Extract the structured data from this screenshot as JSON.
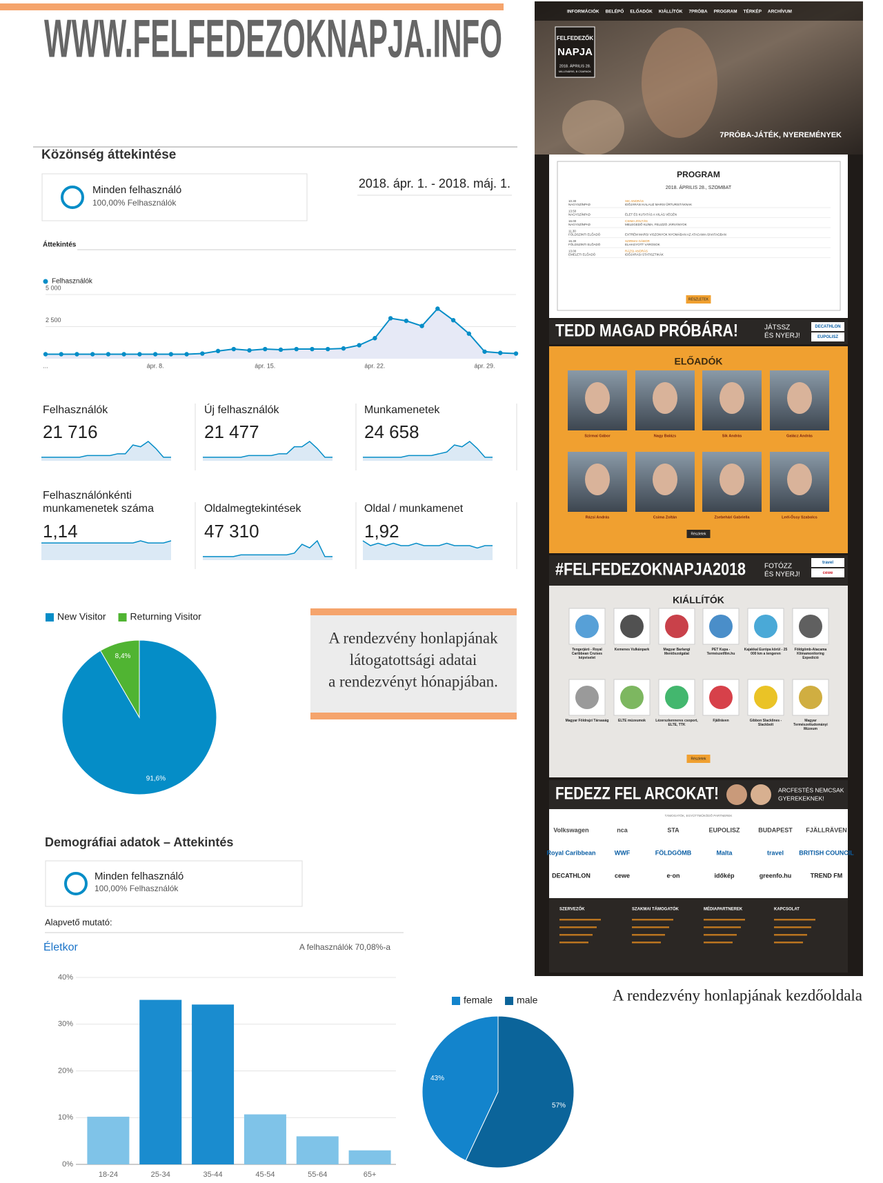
{
  "header": {
    "title": "WWW.FELFEDEZOKNAPJA.INFO"
  },
  "overview": {
    "title": "Közönség áttekintése",
    "segment": "Minden felhasználó",
    "segment_sub": "100,00% Felhasználók",
    "date_range": "2018. ápr. 1. - 2018. máj. 1.",
    "tab": "Áttekintés"
  },
  "metrics": [
    {
      "label": "Felhasználók",
      "value": "21 716",
      "trend": [
        2,
        2,
        2,
        2,
        2,
        2,
        3,
        3,
        3,
        3,
        4,
        4,
        9,
        8,
        11,
        7,
        2,
        2
      ]
    },
    {
      "label": "Új felhasználók",
      "value": "21 477",
      "trend": [
        2,
        2,
        2,
        2,
        2,
        2,
        3,
        3,
        3,
        3,
        4,
        4,
        8,
        8,
        11,
        7,
        2,
        2
      ]
    },
    {
      "label": "Munkamenetek",
      "value": "24 658",
      "trend": [
        2,
        2,
        2,
        2,
        2,
        2,
        3,
        3,
        3,
        3,
        4,
        5,
        9,
        8,
        11,
        7,
        2,
        2
      ]
    },
    {
      "label": "Felhasználónkénti munkamenetek száma",
      "value": "1,14",
      "trend": [
        8,
        8,
        8,
        8,
        8,
        8,
        8,
        8,
        8,
        8,
        8,
        8,
        8,
        9,
        8,
        8,
        8,
        9
      ]
    },
    {
      "label": "Oldalmegtekintések",
      "value": "47 310",
      "trend": [
        2,
        2,
        2,
        2,
        2,
        3,
        3,
        3,
        3,
        3,
        3,
        3,
        4,
        9,
        7,
        11,
        2,
        2
      ]
    },
    {
      "label": "Oldal / munkamenet",
      "value": "1,92",
      "trend": [
        8,
        6,
        7,
        6,
        7,
        6,
        6,
        7,
        6,
        6,
        6,
        7,
        6,
        6,
        6,
        5,
        6,
        6
      ]
    }
  ],
  "caption_box": {
    "lines": [
      "A rendezvény honlapjának",
      "látogatottsági adatai",
      "a rendezvényt hónapjában."
    ]
  },
  "demographics": {
    "title": "Demográfiai adatok – Attekintés",
    "segment": "Minden felhasználó",
    "segment_sub": "100,00% Felhasználók",
    "metric_label": "Alapvető mutató:"
  },
  "chart_data": [
    {
      "type": "line",
      "categories": [
        "...",
        null,
        null,
        null,
        null,
        null,
        null,
        "ápr. 8.",
        null,
        null,
        null,
        null,
        null,
        null,
        "ápr. 15.",
        null,
        null,
        null,
        null,
        null,
        null,
        "ápr. 22.",
        null,
        null,
        null,
        null,
        null,
        null,
        "ápr. 29.",
        null,
        null
      ],
      "series": [
        {
          "name": "Felhasználók",
          "color": "#058dc7",
          "values": [
            350,
            350,
            350,
            350,
            350,
            350,
            350,
            350,
            350,
            350,
            400,
            600,
            750,
            650,
            750,
            700,
            750,
            750,
            750,
            800,
            1050,
            1600,
            3150,
            2950,
            2550,
            3900,
            3000,
            1950,
            550,
            450,
            400
          ]
        }
      ],
      "ylim": [
        0,
        5000
      ],
      "yticks": [
        {
          "value": 2500,
          "label": "2 500"
        },
        {
          "value": 5000,
          "label": "5 000"
        }
      ],
      "grid": true
    },
    {
      "type": "pie",
      "categories": [
        "New Visitor",
        "Returning Visitor"
      ],
      "values": [
        91.6,
        8.4
      ],
      "value_labels": [
        "91,6%",
        "8,4%"
      ],
      "colors": [
        "#058dc7",
        "#50b432"
      ],
      "clockwise": true
    },
    {
      "type": "bar",
      "title": "Életkor",
      "subtitle": "A felhasználók 70,08%-a",
      "categories": [
        "18-24",
        "25-34",
        "35-44",
        "45-54",
        "55-64",
        "65+"
      ],
      "values": [
        10.2,
        35.2,
        34.2,
        10.7,
        6.0,
        3.0
      ],
      "colors": [
        "#7fc3e8",
        "#1a8ccf",
        "#1a8ccf",
        "#7fc3e8",
        "#7fc3e8",
        "#7fc3e8"
      ],
      "ylim": [
        0,
        40
      ],
      "yticks": [
        {
          "value": 0,
          "label": "0%"
        },
        {
          "value": 10,
          "label": "10%"
        },
        {
          "value": 20,
          "label": "20%"
        },
        {
          "value": 30,
          "label": "30%"
        },
        {
          "value": 40,
          "label": "40%"
        }
      ],
      "grid": true
    },
    {
      "type": "pie",
      "categories": [
        "female",
        "male"
      ],
      "values": [
        43,
        57
      ],
      "value_labels": [
        "43%",
        "57%"
      ],
      "colors": [
        "#1384cc",
        "#0b649a"
      ],
      "clockwise": false
    }
  ],
  "website": {
    "nav": [
      "INFORMÁCIÓK",
      "BELÉPŐ",
      "ELŐADÓK",
      "KIÁLLÍTÓK",
      "7PRÓBA",
      "PROGRAM",
      "TÉRKÉP",
      "ARCHÍVUM"
    ],
    "logo": [
      "FELFEDEZŐK",
      "NAPJA"
    ],
    "logo_date": "2018. ÁPRILIS 28.",
    "logo_place": "MILLENÁRIS, B CSARNOK",
    "hero_caption": "7PRÓBA-JÁTÉK, NYEREMÉNYEK",
    "program": {
      "title": "PROGRAM",
      "date": "2018. ÁPRILIS 28., SZOMBAT",
      "rows": [
        {
          "time": "10.30",
          "place": "NAGYSZÍNPAD",
          "speaker": "SIK ANDRÁS",
          "topic": "IDŐJÁRÁSI KALAUZ MARSI ŰRTURISTÁKNAK"
        },
        {
          "time": "13.50",
          "place": "NAGYSZÍNPAD",
          "topic": "ÉLET ÉS KUTATÁS A VILÁG VÉGÉN"
        },
        {
          "time": "16.00",
          "place": "NAGYSZÍNPAD",
          "speaker": "CSIMA ZOLTÁN",
          "topic": "MELEGEDŐ KLÍMA, FELIZZÓ JÁRVÁNYOK"
        },
        {
          "time": "11.30",
          "place": "FÖLDSZINTI ELŐADÓ",
          "topic": "EXTRÉM MARSI VISZONYOK NYOMÁBAN AZ ATACAMA-SIVATAGBAN"
        },
        {
          "time": "16.30",
          "place": "FÖLDSZINTI ELŐADÓ",
          "speaker": "SZIRMAI GÁBOR",
          "topic": "ELHAGYOTT VÁROSOK"
        },
        {
          "time": "13.00",
          "place": "EMELETI ELŐADÓ",
          "speaker": "RÁZSI ANDRÁS",
          "topic": "IDŐJÁRÁSI STATISZTIKÁK"
        }
      ],
      "button": "RÉSZLETEK"
    },
    "banner1": {
      "text": "TEDD MAGAD PRÓBÁRA!",
      "tagline": [
        "JÁTSSZ",
        "ÉS NYERJ!"
      ],
      "sponsors": [
        "DECATHLON",
        "EUPOLISZ"
      ]
    },
    "speakers": {
      "title": "ELŐADÓK",
      "names": [
        "Szirmai Gábor",
        "Nagy Balázs",
        "Sik András",
        "Galácz András",
        "Rázsi András",
        "Csima Zoltán",
        "Zsebehári Gabriella",
        "Leél-Őssy Szabolcs"
      ],
      "button": "Részletek"
    },
    "banner2": {
      "text": "#FELFEDEZOKNAPJA2018",
      "tagline": [
        "FOTÓZZ",
        "ÉS NYERJ!"
      ],
      "sponsors": [
        "travel",
        "cewe"
      ]
    },
    "exhibitors": {
      "title": "KIÁLLÍTÓK",
      "names": [
        "Tengerjáró - Royal Caribbean Cruises képviselet",
        "Kemenes Vulkánpark",
        "Magyar Barlangi Mentőszolgálat",
        "PET Kupa - Természetfilm.hu",
        "Kajakkal Európa körül - 25 000 km a tengeren",
        "Földgömb-Atacama Klímamonitoring Expedíció",
        "Magyar Földrajzi Társaság",
        "ELTE múzeumok",
        "Lézerszkenneres csoport, ELTE, TTK",
        "Fjällräven",
        "Gibbon Slacklines - Slackbolt",
        "Magyar Természettudományi Múzeum"
      ],
      "button": "Részletek"
    },
    "banner3": {
      "text": "FEDEZZ FEL ARCOKAT!",
      "tagline": [
        "ARCFESTÉS NEMCSAK",
        "GYEREKEKNEK!"
      ]
    },
    "partners": {
      "title": "TÁMOGATÓK, EGYÜTTMŰKÖDŐ PARTNEREK",
      "names": [
        "Volkswagen",
        "nca",
        "STA",
        "EUPOLISZ",
        "BUDAPEST",
        "FJÄLLRÄVEN",
        "Royal Caribbean",
        "WWF",
        "FÖLDGÖMB",
        "Malta",
        "travel",
        "BRITISH COUNCIL",
        "DECATHLON",
        "cewe",
        "e·on",
        "időkép",
        "greenfo.hu",
        "TREND FM"
      ]
    },
    "footer": {
      "columns": [
        "SZERVEZŐK",
        "SZAKMAI TÁMOGATÓK",
        "MÉDIAPARTNEREK",
        "KAPCSOLAT"
      ]
    }
  },
  "website_caption": "A rendezvény honlapjának kezdőoldala"
}
